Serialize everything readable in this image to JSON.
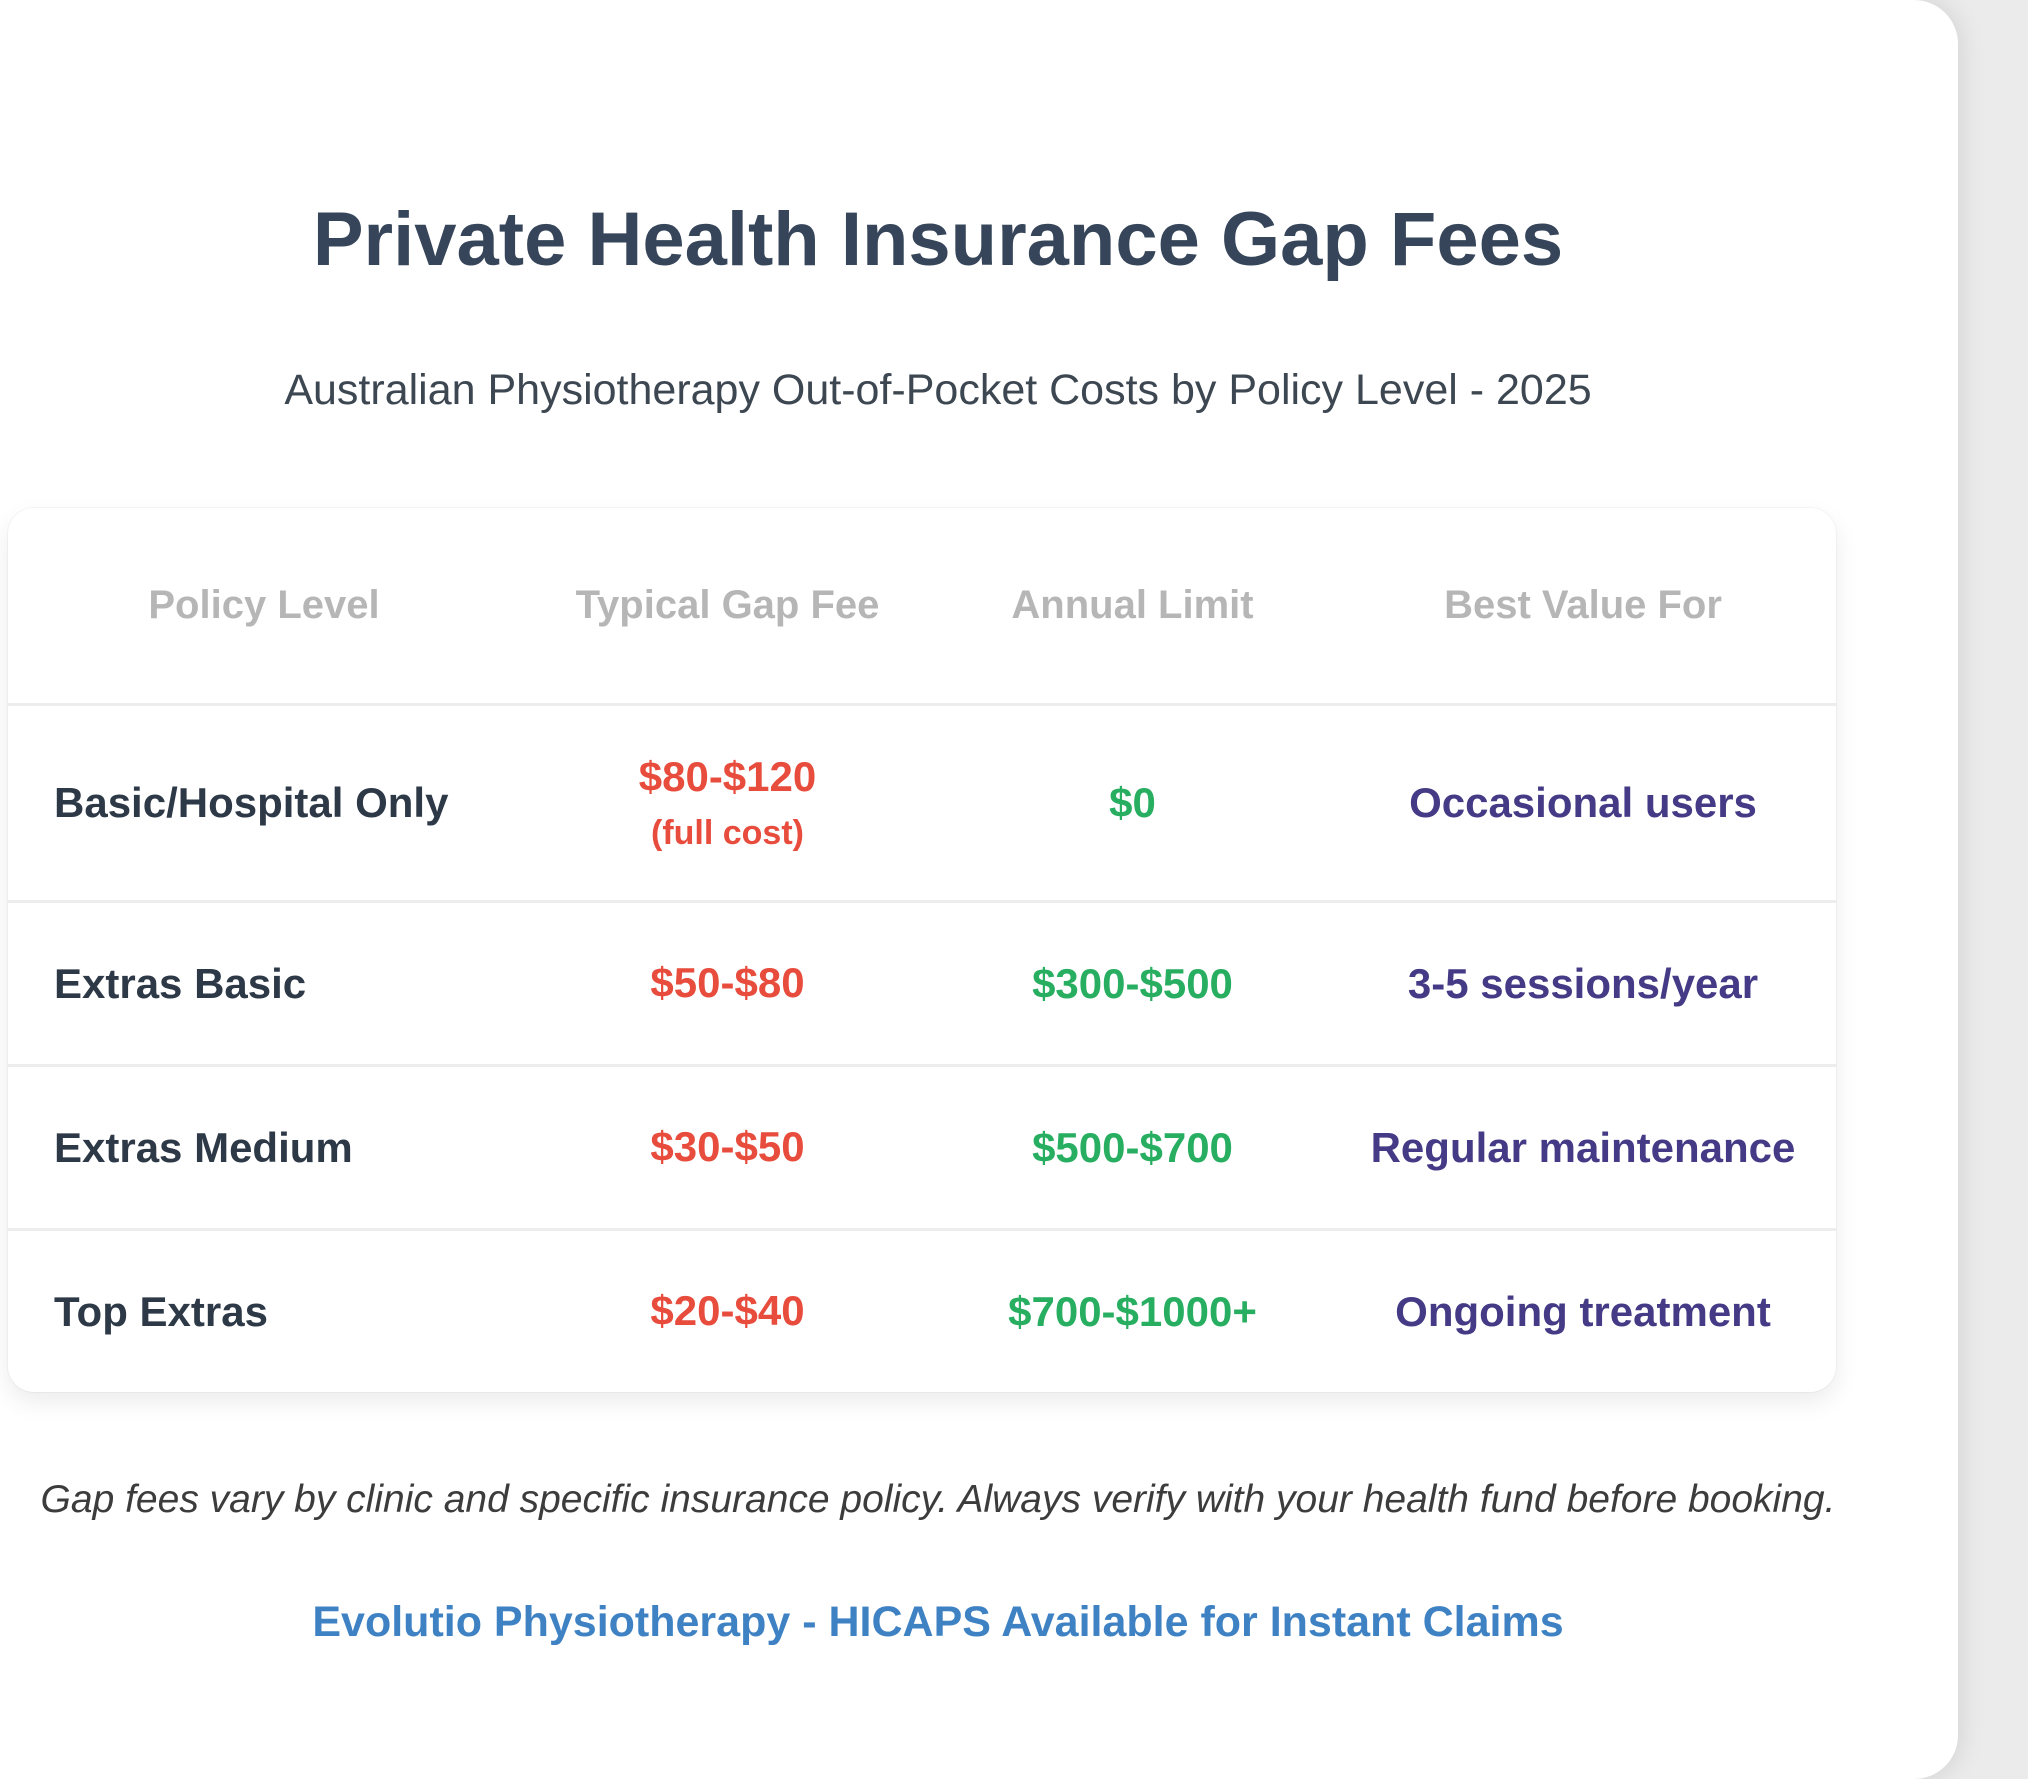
{
  "page": {
    "title": "Private Health Insurance Gap Fees",
    "subtitle": "Australian Physiotherapy Out-of-Pocket Costs by Policy Level - 2025",
    "footnote": "Gap fees vary by clinic and specific insurance policy. Always verify with your health fund before booking.",
    "footer": "Evolutio Physiotherapy - HICAPS Available for Instant Claims"
  },
  "table": {
    "headers": {
      "policy_level": "Policy Level",
      "gap_fee": "Typical Gap Fee",
      "annual_limit": "Annual Limit",
      "best_value": "Best Value For"
    },
    "rows": [
      {
        "policy_level": "Basic/Hospital Only",
        "gap_fee": "$80-$120",
        "gap_fee_note": "(full cost)",
        "annual_limit": "$0",
        "best_value": "Occasional users"
      },
      {
        "policy_level": "Extras Basic",
        "gap_fee": "$50-$80",
        "gap_fee_note": "",
        "annual_limit": "$300-$500",
        "best_value": "3-5 sessions/year"
      },
      {
        "policy_level": "Extras Medium",
        "gap_fee": "$30-$50",
        "gap_fee_note": "",
        "annual_limit": "$500-$700",
        "best_value": "Regular maintenance"
      },
      {
        "policy_level": "Top Extras",
        "gap_fee": "$20-$40",
        "gap_fee_note": "",
        "annual_limit": "$700-$1000+",
        "best_value": "Ongoing treatment"
      }
    ]
  },
  "colors": {
    "title": "#364559",
    "header_text": "#b6b6b6",
    "policy_label": "#2e3947",
    "gap_fee_red": "#e74c3c",
    "annual_limit_green": "#27ae60",
    "best_value_purple": "#443a85",
    "footer_blue": "#3f82c4",
    "row_separator": "#ededed"
  },
  "chart_data": {
    "type": "table",
    "title": "Private Health Insurance Gap Fees",
    "subtitle": "Australian Physiotherapy Out-of-Pocket Costs by Policy Level - 2025",
    "columns": [
      "Policy Level",
      "Typical Gap Fee",
      "Annual Limit",
      "Best Value For"
    ],
    "rows": [
      [
        "Basic/Hospital Only",
        "$80-$120 (full cost)",
        "$0",
        "Occasional users"
      ],
      [
        "Extras Basic",
        "$50-$80",
        "$300-$500",
        "3-5 sessions/year"
      ],
      [
        "Extras Medium",
        "$30-$50",
        "$500-$700",
        "Regular maintenance"
      ],
      [
        "Top Extras",
        "$20-$40",
        "$700-$1000+",
        "Ongoing treatment"
      ]
    ],
    "notes": "Gap fees vary by clinic and specific insurance policy. Always verify with your health fund before booking. Evolutio Physiotherapy - HICAPS Available for Instant Claims"
  }
}
